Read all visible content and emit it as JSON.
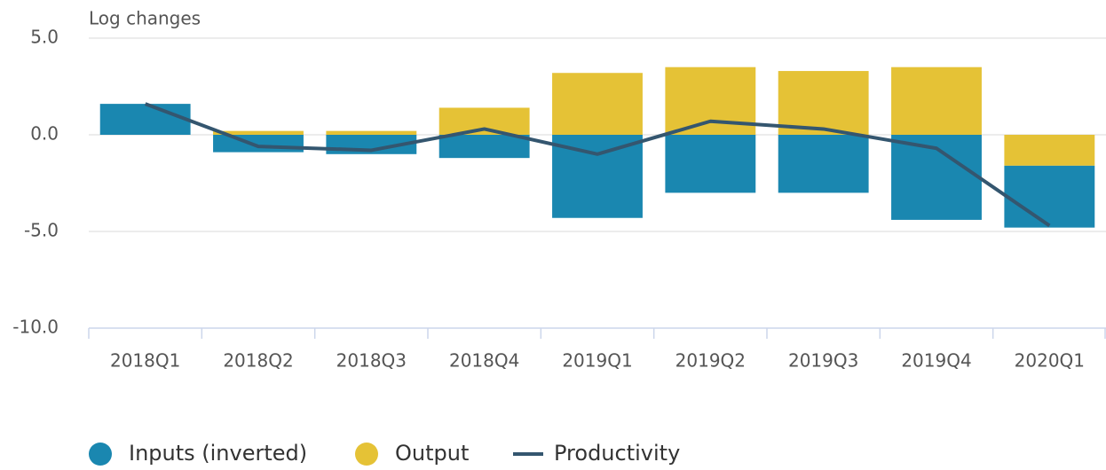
{
  "chart_data": {
    "type": "bar",
    "stacked": true,
    "yaxis_title": "Log changes",
    "categories": [
      "2018Q1",
      "2018Q2",
      "2018Q3",
      "2018Q4",
      "2019Q1",
      "2019Q2",
      "2019Q3",
      "2019Q4",
      "2020Q1"
    ],
    "series": [
      {
        "name": "Inputs (inverted)",
        "type": "bar",
        "color": "#1a87b0",
        "values": [
          1.6,
          -0.9,
          -1.0,
          -1.2,
          -4.3,
          -3.0,
          -3.0,
          -4.4,
          -3.2
        ]
      },
      {
        "name": "Output",
        "type": "bar",
        "color": "#e5c236",
        "values": [
          0,
          0.2,
          0.2,
          1.4,
          3.2,
          3.5,
          3.3,
          3.5,
          -1.6
        ]
      },
      {
        "name": "Productivity",
        "type": "line",
        "color": "#34566f",
        "values": [
          1.6,
          -0.6,
          -0.8,
          0.3,
          -1.0,
          0.7,
          0.3,
          -0.7,
          -4.7
        ]
      }
    ],
    "ylim": [
      -10,
      5
    ],
    "yticks": [
      {
        "value": -10,
        "label": "-10.0"
      },
      {
        "value": -5,
        "label": "-5.0"
      },
      {
        "value": 0,
        "label": "0.0"
      },
      {
        "value": 5,
        "label": "5.0"
      }
    ],
    "grid": true,
    "legend": "bottom"
  }
}
